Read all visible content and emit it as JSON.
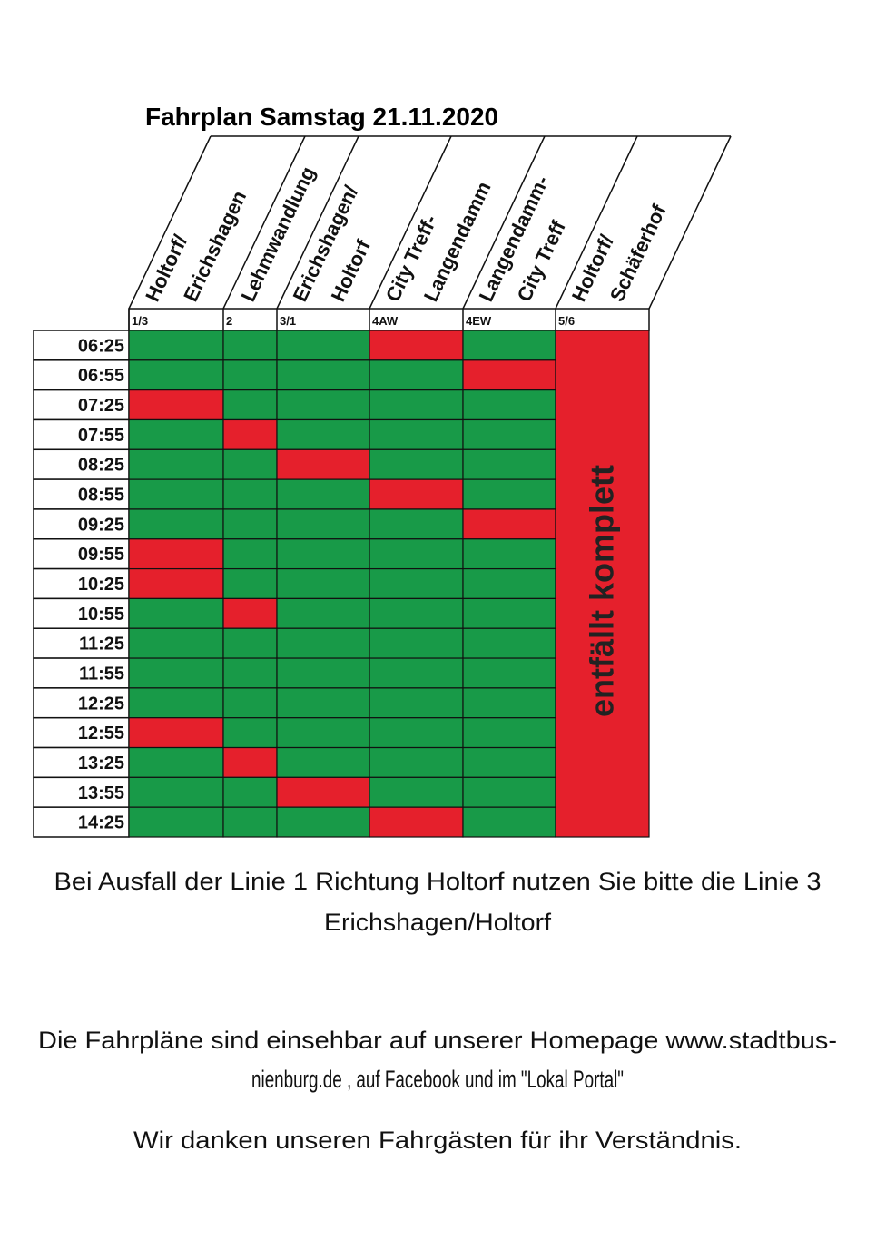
{
  "title": "Fahrplan Samstag 21.11.2020",
  "columns": [
    {
      "code": "1/3",
      "name": [
        "Holtorf/",
        "Erichshagen"
      ]
    },
    {
      "code": "2",
      "name": [
        "Lehmwandlung"
      ]
    },
    {
      "code": "3/1",
      "name": [
        "Erichshagen/",
        "Holtorf"
      ]
    },
    {
      "code": "4AW",
      "name": [
        "City Treff-",
        "Langendamm"
      ]
    },
    {
      "code": "4EW",
      "name": [
        "Langendamm-",
        "City Treff"
      ]
    },
    {
      "code": "5/6",
      "name": [
        "Holtorf/",
        "Schäferhof"
      ]
    }
  ],
  "cancelled_note": "entfällt komplett",
  "green": "#189a48",
  "red": "#e5202c",
  "rows": [
    {
      "time": "06:25",
      "colors": [
        "green",
        "green",
        "green",
        "red",
        "green"
      ]
    },
    {
      "time": "06:55",
      "colors": [
        "green",
        "green",
        "green",
        "green",
        "red"
      ]
    },
    {
      "time": "07:25",
      "colors": [
        "red",
        "green",
        "green",
        "green",
        "green"
      ]
    },
    {
      "time": "07:55",
      "colors": [
        "green",
        "red",
        "green",
        "green",
        "green"
      ]
    },
    {
      "time": "08:25",
      "colors": [
        "green",
        "green",
        "red",
        "green",
        "green"
      ]
    },
    {
      "time": "08:55",
      "colors": [
        "green",
        "green",
        "green",
        "red",
        "green"
      ]
    },
    {
      "time": "09:25",
      "colors": [
        "green",
        "green",
        "green",
        "green",
        "red"
      ]
    },
    {
      "time": "09:55",
      "colors": [
        "red",
        "green",
        "green",
        "green",
        "green"
      ]
    },
    {
      "time": "10:25",
      "colors": [
        "red",
        "green",
        "green",
        "green",
        "green"
      ]
    },
    {
      "time": "10:55",
      "colors": [
        "green",
        "red",
        "green",
        "green",
        "green"
      ]
    },
    {
      "time": "11:25",
      "colors": [
        "green",
        "green",
        "green",
        "green",
        "green"
      ]
    },
    {
      "time": "11:55",
      "colors": [
        "green",
        "green",
        "green",
        "green",
        "green"
      ]
    },
    {
      "time": "12:25",
      "colors": [
        "green",
        "green",
        "green",
        "green",
        "green"
      ]
    },
    {
      "time": "12:55",
      "colors": [
        "red",
        "green",
        "green",
        "green",
        "green"
      ]
    },
    {
      "time": "13:25",
      "colors": [
        "green",
        "red",
        "green",
        "green",
        "green"
      ]
    },
    {
      "time": "13:55",
      "colors": [
        "green",
        "green",
        "red",
        "green",
        "green"
      ]
    },
    {
      "time": "14:25",
      "colors": [
        "green",
        "green",
        "green",
        "red",
        "green"
      ]
    }
  ],
  "notes": [
    [
      "Bei Ausfall der Linie 1 Richtung Holtorf nutzen Sie bitte die Linie 3",
      "Erichshagen/Holtorf"
    ],
    [
      "Die Fahrpläne sind einsehbar auf unserer Homepage www.stadtbus-",
      "nienburg.de , auf Facebook und im \"Lokal Portal\""
    ],
    [
      "Wir danken unseren Fahrgästen für ihr Verständnis."
    ]
  ]
}
